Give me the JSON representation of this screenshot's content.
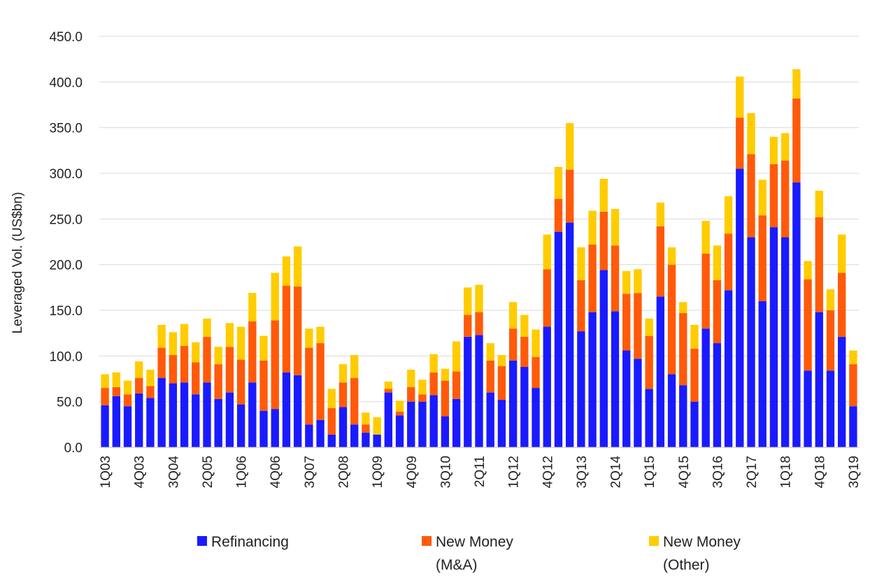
{
  "chart_data": {
    "type": "bar",
    "stacked": true,
    "ylabel": "Leveraged Vol. (US$bn)",
    "xlabel": "",
    "ylim": [
      0,
      450
    ],
    "yticks": [
      "0.0",
      "50.0",
      "100.0",
      "150.0",
      "200.0",
      "250.0",
      "300.0",
      "350.0",
      "400.0",
      "450.0"
    ],
    "grid": true,
    "categories": [
      "1Q03",
      "2Q03",
      "3Q03",
      "4Q03",
      "1Q04",
      "2Q04",
      "3Q04",
      "4Q04",
      "1Q05",
      "2Q05",
      "3Q05",
      "4Q05",
      "1Q06",
      "2Q06",
      "3Q06",
      "4Q06",
      "1Q07",
      "2Q07",
      "3Q07",
      "4Q07",
      "1Q08",
      "2Q08",
      "3Q08",
      "4Q08",
      "1Q09",
      "2Q09",
      "3Q09",
      "4Q09",
      "1Q10",
      "2Q10",
      "3Q10",
      "4Q10",
      "1Q11",
      "2Q11",
      "3Q11",
      "4Q11",
      "1Q12",
      "2Q12",
      "3Q12",
      "4Q12",
      "1Q13",
      "2Q13",
      "3Q13",
      "4Q13",
      "1Q14",
      "2Q14",
      "3Q14",
      "4Q14",
      "1Q15",
      "2Q15",
      "3Q15",
      "4Q15",
      "1Q16",
      "2Q16",
      "3Q16",
      "4Q16",
      "1Q17",
      "2Q17",
      "3Q17",
      "4Q17",
      "1Q18",
      "2Q18",
      "3Q18",
      "4Q18",
      "1Q19",
      "2Q19",
      "3Q19"
    ],
    "xtick_labels": [
      "1Q03",
      "4Q03",
      "3Q04",
      "2Q05",
      "1Q06",
      "4Q06",
      "3Q07",
      "2Q08",
      "1Q09",
      "4Q09",
      "3Q10",
      "2Q11",
      "1Q12",
      "4Q12",
      "3Q13",
      "2Q14",
      "1Q15",
      "4Q15",
      "3Q16",
      "2Q17",
      "1Q18",
      "4Q18",
      "3Q19"
    ],
    "series": [
      {
        "name": "Refinancing",
        "color": "#1a1aff",
        "values": [
          46,
          56,
          45,
          59,
          54,
          76,
          70,
          71,
          58,
          71,
          53,
          60,
          47,
          71,
          40,
          42,
          82,
          79,
          25,
          30,
          14,
          44,
          25,
          16,
          14,
          60,
          35,
          50,
          50,
          57,
          34,
          53,
          121,
          123,
          60,
          52,
          95,
          88,
          65,
          132,
          236,
          246,
          127,
          148,
          194,
          149,
          106,
          97,
          64,
          165,
          80,
          68,
          50,
          130,
          114,
          172,
          305,
          230,
          160,
          241,
          230,
          290,
          84,
          148,
          84,
          121,
          45
        ]
      },
      {
        "name": "New Money\n(M&A)",
        "color": "#ff5a0a",
        "values": [
          19,
          10,
          13,
          17,
          13,
          33,
          31,
          40,
          35,
          50,
          38,
          50,
          49,
          67,
          55,
          97,
          95,
          97,
          84,
          84,
          29,
          27,
          51,
          9,
          0,
          4,
          4,
          16,
          8,
          25,
          39,
          30,
          24,
          25,
          35,
          37,
          35,
          33,
          34,
          63,
          36,
          58,
          56,
          74,
          64,
          72,
          62,
          72,
          58,
          77,
          120,
          79,
          58,
          82,
          69,
          62,
          56,
          91,
          94,
          69,
          84,
          92,
          100,
          104,
          66,
          70,
          46
        ]
      },
      {
        "name": "New Money\n(Other)",
        "color": "#ffcc00",
        "values": [
          15,
          16,
          15,
          18,
          18,
          25,
          25,
          24,
          22,
          20,
          19,
          26,
          36,
          31,
          27,
          52,
          32,
          44,
          21,
          18,
          21,
          20,
          25,
          13,
          19,
          8,
          12,
          19,
          16,
          20,
          13,
          33,
          30,
          30,
          19,
          12,
          29,
          24,
          30,
          38,
          35,
          51,
          36,
          37,
          36,
          40,
          25,
          26,
          19,
          26,
          19,
          12,
          26,
          36,
          38,
          41,
          45,
          45,
          39,
          30,
          30,
          32,
          20,
          29,
          23,
          42,
          15
        ]
      }
    ],
    "legend": {
      "placement": "bottom",
      "items": [
        {
          "line1": "Refinancing",
          "line2": ""
        },
        {
          "line1": "New Money",
          "line2": "(M&A)"
        },
        {
          "line1": "New Money",
          "line2": "(Other)"
        }
      ]
    }
  }
}
